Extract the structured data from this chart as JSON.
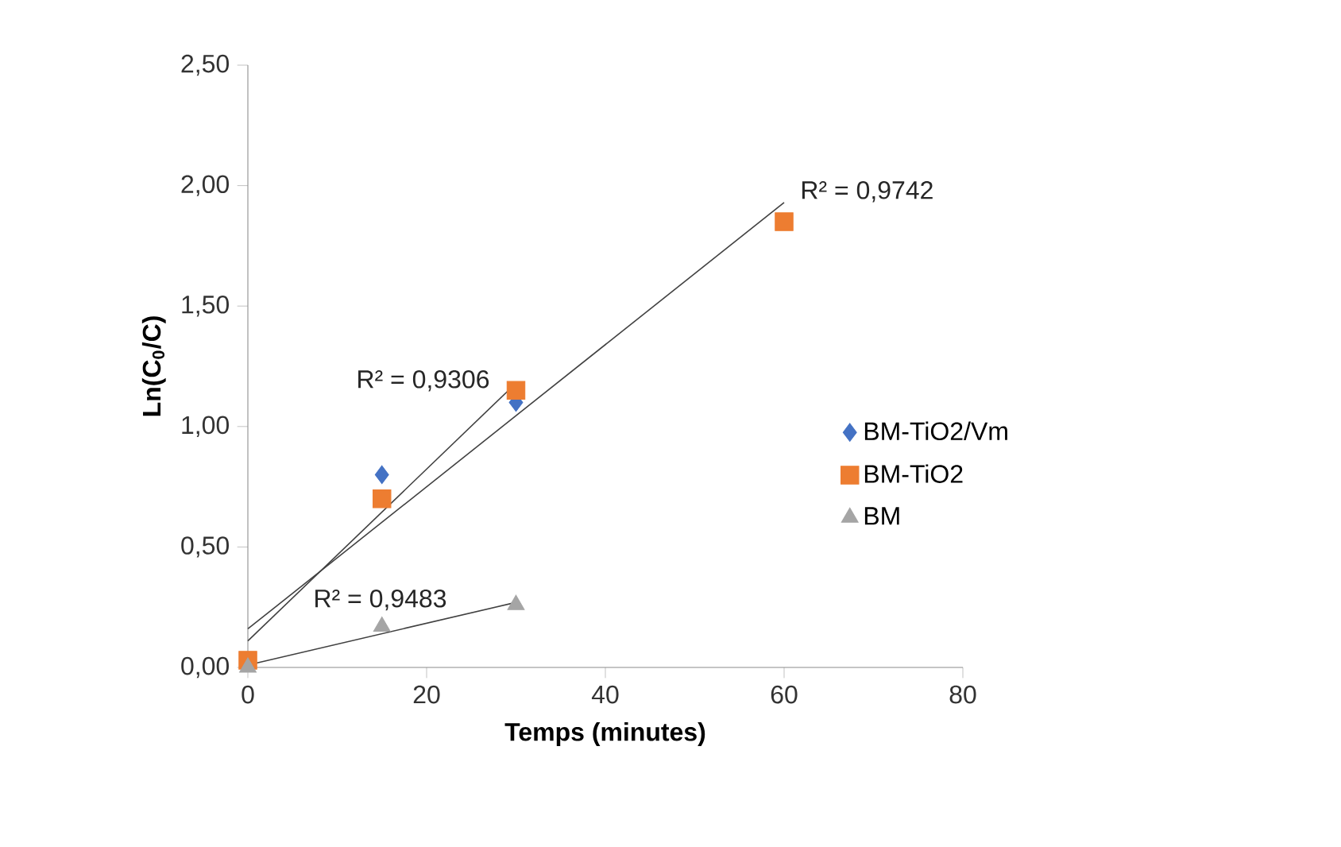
{
  "chart_data": {
    "type": "scatter",
    "xlabel": "Temps (minutes)",
    "ylabel": "Ln(C$_{0}$/C)",
    "xlim": [
      0,
      80
    ],
    "xticks": [
      0,
      20,
      40,
      60,
      80
    ],
    "ylim": [
      0,
      2.5
    ],
    "yticks": [
      {
        "value": 0,
        "label": "0,00"
      },
      {
        "value": 0.5,
        "label": "0,50"
      },
      {
        "value": 1,
        "label": "1,00"
      },
      {
        "value": 1.5,
        "label": "1,50"
      },
      {
        "value": 2,
        "label": "2,00"
      },
      {
        "value": 2.5,
        "label": "2,50"
      }
    ],
    "grid": false,
    "legend": "right",
    "series": [
      {
        "name": "BM-TiO2/Vm",
        "color": "#4472c4",
        "marker": "diamond",
        "x": [
          15,
          30
        ],
        "values": [
          0.8,
          1.1
        ]
      },
      {
        "name": "BM-TiO2",
        "color": "#ed7d31",
        "marker": "square",
        "x": [
          0,
          15,
          30,
          60
        ],
        "values": [
          0.03,
          0.7,
          1.15,
          1.85
        ]
      },
      {
        "name": "BM",
        "color": "#a5a5a5",
        "marker": "triangle",
        "x": [
          0,
          15,
          30
        ],
        "values": [
          0,
          0.17,
          0.26
        ]
      },
      {
        "type": "line",
        "color": "#404040",
        "marker": "none",
        "x": [
          0,
          30
        ],
        "values": [
          0.11,
          1.18
        ]
      },
      {
        "type": "line",
        "color": "#404040",
        "marker": "none",
        "x": [
          0,
          60
        ],
        "values": [
          0.16,
          1.93
        ]
      },
      {
        "type": "line",
        "color": "#404040",
        "marker": "none",
        "x": [
          0,
          30
        ],
        "values": [
          0.01,
          0.27
        ]
      }
    ],
    "annotations": [
      "R² = 0,9742",
      "R² = 0,9306",
      "R² = 0,9483"
    ]
  }
}
